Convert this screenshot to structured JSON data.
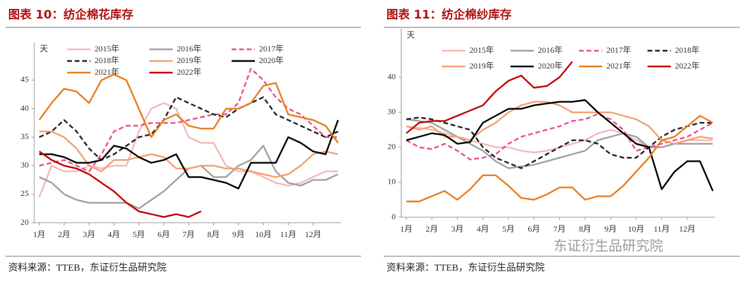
{
  "watermark": "东证衍生品研究院",
  "chart_data": [
    {
      "type": "line",
      "title": "图表 10：纺企棉花库存",
      "y_label": "天",
      "source": "资料来源：TTEB，东证衍生品研究院",
      "x": [
        1,
        1.5,
        2,
        2.5,
        3,
        3.5,
        4,
        4.5,
        5,
        5.5,
        6,
        6.5,
        7,
        7.5,
        8,
        8.5,
        9,
        9.5,
        10,
        10.5,
        11,
        11.5,
        12,
        12.5,
        13
      ],
      "xlim": [
        0.8,
        13.1
      ],
      "xticks": [
        {
          "value": 1,
          "label": "1月"
        },
        {
          "value": 2,
          "label": "2月"
        },
        {
          "value": 3,
          "label": "3月"
        },
        {
          "value": 4,
          "label": "4月"
        },
        {
          "value": 5,
          "label": "5月"
        },
        {
          "value": 6,
          "label": "6月"
        },
        {
          "value": 7,
          "label": "7月"
        },
        {
          "value": 8,
          "label": "8月"
        },
        {
          "value": 9,
          "label": "9月"
        },
        {
          "value": 10,
          "label": "10月"
        },
        {
          "value": 11,
          "label": "11月"
        },
        {
          "value": 12,
          "label": "12月"
        }
      ],
      "ylim": [
        20,
        48
      ],
      "yticks": [
        20,
        25,
        30,
        35,
        40,
        45
      ],
      "series": [
        {
          "name": "2015年",
          "color": "#f4b8b8",
          "dash": false,
          "values": [
            24.5,
            30,
            29,
            29,
            30,
            29.5,
            30,
            30,
            36,
            40,
            41,
            40,
            35,
            34,
            34,
            30,
            29,
            29,
            28,
            27,
            26.5,
            27,
            28,
            29,
            29
          ]
        },
        {
          "name": "2016年",
          "color": "#a0a0a0",
          "dash": false,
          "values": [
            28,
            27,
            25,
            24,
            23.5,
            23.5,
            23.5,
            23.5,
            22.5,
            24,
            25.5,
            27.5,
            29.5,
            30,
            28,
            28,
            30,
            31,
            33.5,
            29,
            27,
            26.5,
            27.5,
            27.5,
            28.5
          ]
        },
        {
          "name": "2017年",
          "color": "#e8508a",
          "dash": true,
          "values": [
            30,
            30.5,
            31,
            30,
            29,
            32,
            36,
            37,
            37,
            37.5,
            37.5,
            37.5,
            38,
            38.5,
            39,
            39,
            41,
            47,
            45,
            42,
            40,
            39,
            37,
            35,
            35
          ]
        },
        {
          "name": "2018年",
          "color": "#222222",
          "dash": true,
          "values": [
            35,
            36,
            38,
            36,
            33,
            31,
            32,
            33.5,
            35,
            35.5,
            38,
            42,
            41,
            40,
            39,
            38.5,
            40,
            41,
            42,
            39,
            38,
            37,
            36,
            35,
            36
          ]
        },
        {
          "name": "2019年",
          "color": "#f4a070",
          "dash": false,
          "values": [
            36,
            36,
            35,
            33,
            30,
            29,
            31,
            31,
            31.5,
            32,
            31.5,
            29.5,
            29.5,
            30,
            30,
            29.5,
            29.5,
            29,
            28.5,
            28,
            28.5,
            30,
            32,
            32.5,
            32
          ]
        },
        {
          "name": "2020年",
          "color": "#000000",
          "dash": false,
          "values": [
            32,
            32,
            31.5,
            30.5,
            30.5,
            31,
            33.5,
            33,
            31.5,
            30.5,
            31,
            32,
            28,
            28,
            27.5,
            27,
            26,
            30.5,
            30.5,
            30.5,
            35,
            34,
            32.5,
            32,
            38
          ]
        },
        {
          "name": "2021年",
          "color": "#e87d1e",
          "dash": false,
          "values": [
            38,
            41,
            43.5,
            43,
            41,
            45,
            46,
            45,
            40,
            35,
            38,
            39,
            37,
            36.5,
            36.5,
            40,
            40,
            41,
            44,
            44.5,
            39,
            38.5,
            38,
            37,
            34
          ]
        },
        {
          "name": "2022年",
          "color": "#c00000",
          "dash": false,
          "values": [
            32.5,
            31,
            30,
            29.5,
            28.5,
            27,
            25.5,
            23.5,
            22,
            21.5,
            21,
            21.5,
            21,
            22,
            null,
            null,
            null,
            null,
            null,
            null,
            null,
            null,
            null,
            null,
            null
          ]
        }
      ]
    },
    {
      "type": "line",
      "title": "图表 11：纺企棉纱库存",
      "y_label": "天",
      "source": "资料来源：TTEB，东证衍生品研究院",
      "x": [
        1,
        1.5,
        2,
        2.5,
        3,
        3.5,
        4,
        4.5,
        5,
        5.5,
        6,
        6.5,
        7,
        7.5,
        8,
        8.5,
        9,
        9.5,
        10,
        10.5,
        11,
        11.5,
        12,
        12.5,
        13
      ],
      "xlim": [
        0.8,
        13.1
      ],
      "xticks": [
        {
          "value": 1,
          "label": "1月"
        },
        {
          "value": 2,
          "label": "2月"
        },
        {
          "value": 3,
          "label": "3月"
        },
        {
          "value": 4,
          "label": "4月"
        },
        {
          "value": 5,
          "label": "5月"
        },
        {
          "value": 6,
          "label": "6月"
        },
        {
          "value": 7,
          "label": "7月"
        },
        {
          "value": 8,
          "label": "8月"
        },
        {
          "value": 9,
          "label": "9月"
        },
        {
          "value": 10,
          "label": "10月"
        },
        {
          "value": 11,
          "label": "11月"
        },
        {
          "value": 12,
          "label": "12月"
        }
      ],
      "ylim": [
        0,
        48
      ],
      "yticks": [
        0,
        10,
        20,
        30,
        40
      ],
      "series": [
        {
          "name": "2015年",
          "color": "#f4b8b8",
          "dash": false,
          "values": [
            26,
            25.5,
            25,
            24,
            23,
            22,
            21,
            20,
            20,
            19,
            18.5,
            19,
            20,
            21,
            22,
            24,
            25,
            24,
            22,
            20,
            20,
            21,
            22,
            22,
            22
          ]
        },
        {
          "name": "2016年",
          "color": "#a0a0a0",
          "dash": false,
          "values": [
            28,
            27.5,
            27,
            25,
            23,
            21,
            19,
            16,
            14,
            14.5,
            15,
            16,
            17,
            18,
            19,
            22,
            23,
            24,
            23,
            20,
            20,
            21,
            21,
            21,
            21
          ]
        },
        {
          "name": "2017年",
          "color": "#e8508a",
          "dash": true,
          "values": [
            22,
            20,
            19.5,
            21,
            19,
            16.5,
            17,
            18,
            21,
            23,
            24,
            25,
            26,
            27.5,
            28,
            29.5,
            28,
            25,
            19,
            20,
            21,
            22,
            23,
            25,
            27
          ]
        },
        {
          "name": "2018年",
          "color": "#222222",
          "dash": true,
          "values": [
            28,
            28.5,
            28,
            27,
            26,
            25,
            20,
            17,
            15.5,
            14,
            16,
            18,
            20,
            22,
            22,
            21,
            18,
            17,
            17,
            20,
            23,
            25,
            26,
            27,
            27
          ]
        },
        {
          "name": "2019年",
          "color": "#f4a070",
          "dash": false,
          "values": [
            26,
            25,
            26,
            23,
            23,
            22,
            25,
            27,
            30,
            32,
            33,
            33,
            32,
            30,
            30,
            30,
            30,
            29,
            28,
            26,
            22,
            21,
            22,
            23,
            22.5
          ]
        },
        {
          "name": "2020年",
          "color": "#000000",
          "dash": false,
          "values": [
            22,
            23,
            24,
            23.5,
            21,
            21.5,
            27,
            29,
            31,
            31,
            32,
            32.5,
            33,
            33,
            33.5,
            30,
            27,
            24,
            21,
            20,
            8,
            13,
            16,
            16,
            7.5
          ]
        },
        {
          "name": "2021年",
          "color": "#e87d1e",
          "dash": false,
          "values": [
            4.5,
            4.5,
            6,
            7.5,
            5,
            8,
            12,
            12,
            9,
            5.5,
            5,
            6.5,
            8.5,
            8.5,
            5,
            6,
            6,
            9,
            13,
            17,
            22,
            23,
            26,
            29,
            27
          ]
        },
        {
          "name": "2022年",
          "color": "#c00000",
          "dash": false,
          "values": [
            24,
            27,
            27.5,
            27.5,
            29,
            30.5,
            32,
            36,
            39,
            40.5,
            37,
            37.5,
            40,
            44.5,
            null,
            null,
            null,
            null,
            null,
            null,
            null,
            null,
            null,
            null,
            null
          ]
        }
      ]
    }
  ]
}
